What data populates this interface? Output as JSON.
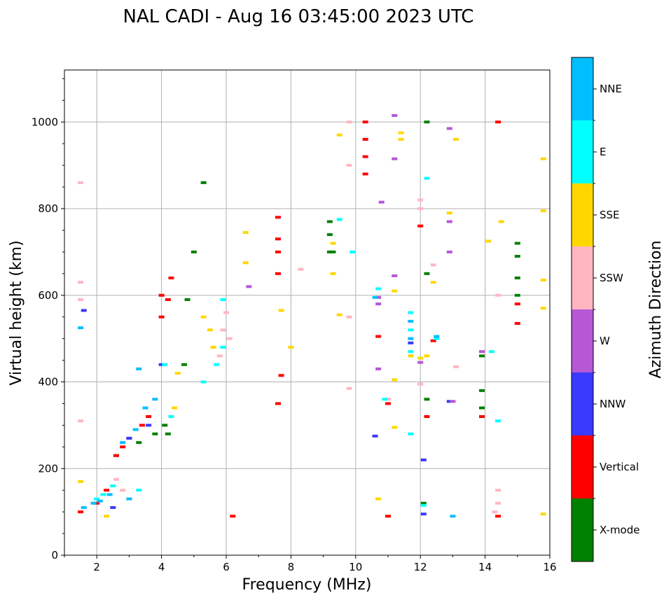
{
  "chart_data": {
    "type": "scatter",
    "title": "NAL CADI - Aug 16 03:45:00 2023 UTC",
    "xlabel": "Frequency (MHz)",
    "ylabel": "Virtual height (km)",
    "xlim": [
      1,
      16
    ],
    "ylim": [
      0,
      1120
    ],
    "xticks": [
      2,
      4,
      6,
      8,
      10,
      12,
      14,
      16
    ],
    "yticks": [
      0,
      200,
      400,
      600,
      800,
      1000
    ],
    "grid": true,
    "colorbar": {
      "label": "Azimuth Direction",
      "categories": [
        {
          "name": "X-mode",
          "color": "#008000"
        },
        {
          "name": "Vertical",
          "color": "#ff0000"
        },
        {
          "name": "NNW",
          "color": "#3a3aff"
        },
        {
          "name": "W",
          "color": "#b657d6"
        },
        {
          "name": "SSW",
          "color": "#ffb6c1"
        },
        {
          "name": "SSE",
          "color": "#ffd700"
        },
        {
          "name": "E",
          "color": "#00ffff"
        },
        {
          "name": "NNE",
          "color": "#00bfff"
        }
      ]
    },
    "series": [
      {
        "name": "X-mode",
        "points": [
          [
            9.2,
            700
          ],
          [
            9.2,
            740
          ],
          [
            9.2,
            770
          ],
          [
            15.0,
            600
          ],
          [
            15.0,
            640
          ],
          [
            15.0,
            690
          ],
          [
            15.0,
            720
          ],
          [
            13.9,
            340
          ],
          [
            13.9,
            380
          ],
          [
            13.9,
            460
          ],
          [
            4.8,
            590
          ],
          [
            5.0,
            700
          ],
          [
            4.1,
            300
          ],
          [
            4.2,
            280
          ],
          [
            3.3,
            260
          ],
          [
            5.3,
            860
          ],
          [
            12.2,
            360
          ],
          [
            12.2,
            650
          ],
          [
            12.1,
            120
          ],
          [
            2.6,
            230
          ],
          [
            4.7,
            440
          ],
          [
            3.8,
            280
          ],
          [
            12.2,
            1000
          ],
          [
            9.3,
            700
          ]
        ]
      },
      {
        "name": "Vertical",
        "points": [
          [
            10.3,
            880
          ],
          [
            10.3,
            920
          ],
          [
            10.3,
            960
          ],
          [
            10.3,
            1000
          ],
          [
            7.6,
            350
          ],
          [
            7.6,
            650
          ],
          [
            7.6,
            700
          ],
          [
            7.6,
            730
          ],
          [
            7.6,
            780
          ],
          [
            15.0,
            535
          ],
          [
            15.0,
            580
          ],
          [
            2.0,
            120
          ],
          [
            2.3,
            150
          ],
          [
            2.6,
            230
          ],
          [
            2.8,
            250
          ],
          [
            3.0,
            270
          ],
          [
            3.4,
            300
          ],
          [
            3.6,
            320
          ],
          [
            4.0,
            550
          ],
          [
            4.0,
            600
          ],
          [
            4.2,
            590
          ],
          [
            4.3,
            640
          ],
          [
            1.5,
            100
          ],
          [
            6.2,
            90
          ],
          [
            11.0,
            90
          ],
          [
            14.4,
            90
          ],
          [
            14.4,
            1000
          ],
          [
            12.2,
            320
          ],
          [
            13.9,
            320
          ],
          [
            12.0,
            760
          ],
          [
            10.7,
            505
          ],
          [
            12.4,
            495
          ],
          [
            7.7,
            415
          ],
          [
            11.0,
            350
          ]
        ]
      },
      {
        "name": "NNW",
        "points": [
          [
            2.5,
            110
          ],
          [
            3.0,
            270
          ],
          [
            3.6,
            300
          ],
          [
            4.0,
            440
          ],
          [
            12.1,
            95
          ],
          [
            12.1,
            220
          ],
          [
            10.6,
            275
          ],
          [
            12.9,
            355
          ],
          [
            11.7,
            490
          ],
          [
            1.6,
            565
          ]
        ]
      },
      {
        "name": "W",
        "points": [
          [
            10.7,
            595
          ],
          [
            10.7,
            580
          ],
          [
            10.7,
            430
          ],
          [
            12.9,
            700
          ],
          [
            12.9,
            770
          ],
          [
            12.9,
            985
          ],
          [
            11.2,
            645
          ],
          [
            11.2,
            1015
          ],
          [
            11.2,
            915
          ],
          [
            10.8,
            815
          ],
          [
            6.7,
            620
          ],
          [
            13.9,
            470
          ],
          [
            12.0,
            445
          ],
          [
            13.0,
            355
          ]
        ]
      },
      {
        "name": "SSW",
        "points": [
          [
            6.0,
            560
          ],
          [
            6.1,
            500
          ],
          [
            5.8,
            460
          ],
          [
            5.9,
            520
          ],
          [
            1.5,
            590
          ],
          [
            1.5,
            630
          ],
          [
            1.5,
            860
          ],
          [
            1.5,
            310
          ],
          [
            2.6,
            175
          ],
          [
            2.8,
            150
          ],
          [
            14.3,
            100
          ],
          [
            14.4,
            120
          ],
          [
            14.4,
            150
          ],
          [
            14.4,
            600
          ],
          [
            12.0,
            800
          ],
          [
            12.0,
            820
          ],
          [
            12.4,
            670
          ],
          [
            8.3,
            660
          ],
          [
            9.8,
            550
          ],
          [
            9.8,
            385
          ],
          [
            9.8,
            1000
          ],
          [
            9.8,
            900
          ],
          [
            13.1,
            435
          ],
          [
            11.0,
            360
          ],
          [
            12.0,
            395
          ]
        ]
      },
      {
        "name": "SSE",
        "points": [
          [
            15.8,
            95
          ],
          [
            15.8,
            570
          ],
          [
            15.8,
            635
          ],
          [
            15.8,
            795
          ],
          [
            15.8,
            915
          ],
          [
            12.9,
            790
          ],
          [
            13.1,
            960
          ],
          [
            12.4,
            630
          ],
          [
            11.4,
            960
          ],
          [
            11.4,
            975
          ],
          [
            9.5,
            970
          ],
          [
            9.3,
            650
          ],
          [
            9.3,
            720
          ],
          [
            9.5,
            555
          ],
          [
            6.6,
            675
          ],
          [
            6.6,
            745
          ],
          [
            7.7,
            565
          ],
          [
            8.0,
            480
          ],
          [
            11.2,
            610
          ],
          [
            11.2,
            405
          ],
          [
            11.2,
            295
          ],
          [
            10.7,
            130
          ],
          [
            12.2,
            460
          ],
          [
            14.1,
            725
          ],
          [
            14.5,
            770
          ],
          [
            2.3,
            90
          ],
          [
            1.5,
            170
          ],
          [
            5.6,
            480
          ],
          [
            5.5,
            520
          ],
          [
            5.3,
            550
          ],
          [
            4.5,
            420
          ],
          [
            4.4,
            340
          ],
          [
            12.0,
            455
          ],
          [
            11.7,
            460
          ]
        ]
      },
      {
        "name": "E",
        "points": [
          [
            11.7,
            560
          ],
          [
            11.7,
            520
          ],
          [
            11.7,
            470
          ],
          [
            11.7,
            280
          ],
          [
            14.2,
            470
          ],
          [
            10.7,
            615
          ],
          [
            9.5,
            775
          ],
          [
            9.9,
            700
          ],
          [
            5.9,
            590
          ],
          [
            5.9,
            480
          ],
          [
            5.7,
            440
          ],
          [
            5.3,
            400
          ],
          [
            2.5,
            160
          ],
          [
            2.2,
            140
          ],
          [
            2.0,
            130
          ],
          [
            4.3,
            320
          ],
          [
            4.1,
            440
          ],
          [
            12.2,
            870
          ],
          [
            12.5,
            500
          ],
          [
            14.4,
            310
          ],
          [
            3.3,
            150
          ],
          [
            10.9,
            360
          ],
          [
            12.1,
            115
          ]
        ]
      },
      {
        "name": "NNE",
        "points": [
          [
            1.5,
            525
          ],
          [
            1.6,
            110
          ],
          [
            1.9,
            120
          ],
          [
            2.1,
            125
          ],
          [
            2.4,
            140
          ],
          [
            2.8,
            260
          ],
          [
            3.2,
            290
          ],
          [
            3.5,
            340
          ],
          [
            3.8,
            360
          ],
          [
            13.0,
            90
          ],
          [
            10.6,
            595
          ],
          [
            12.5,
            505
          ],
          [
            11.7,
            500
          ],
          [
            11.7,
            540
          ],
          [
            3.3,
            430
          ],
          [
            3.0,
            130
          ]
        ]
      }
    ]
  }
}
